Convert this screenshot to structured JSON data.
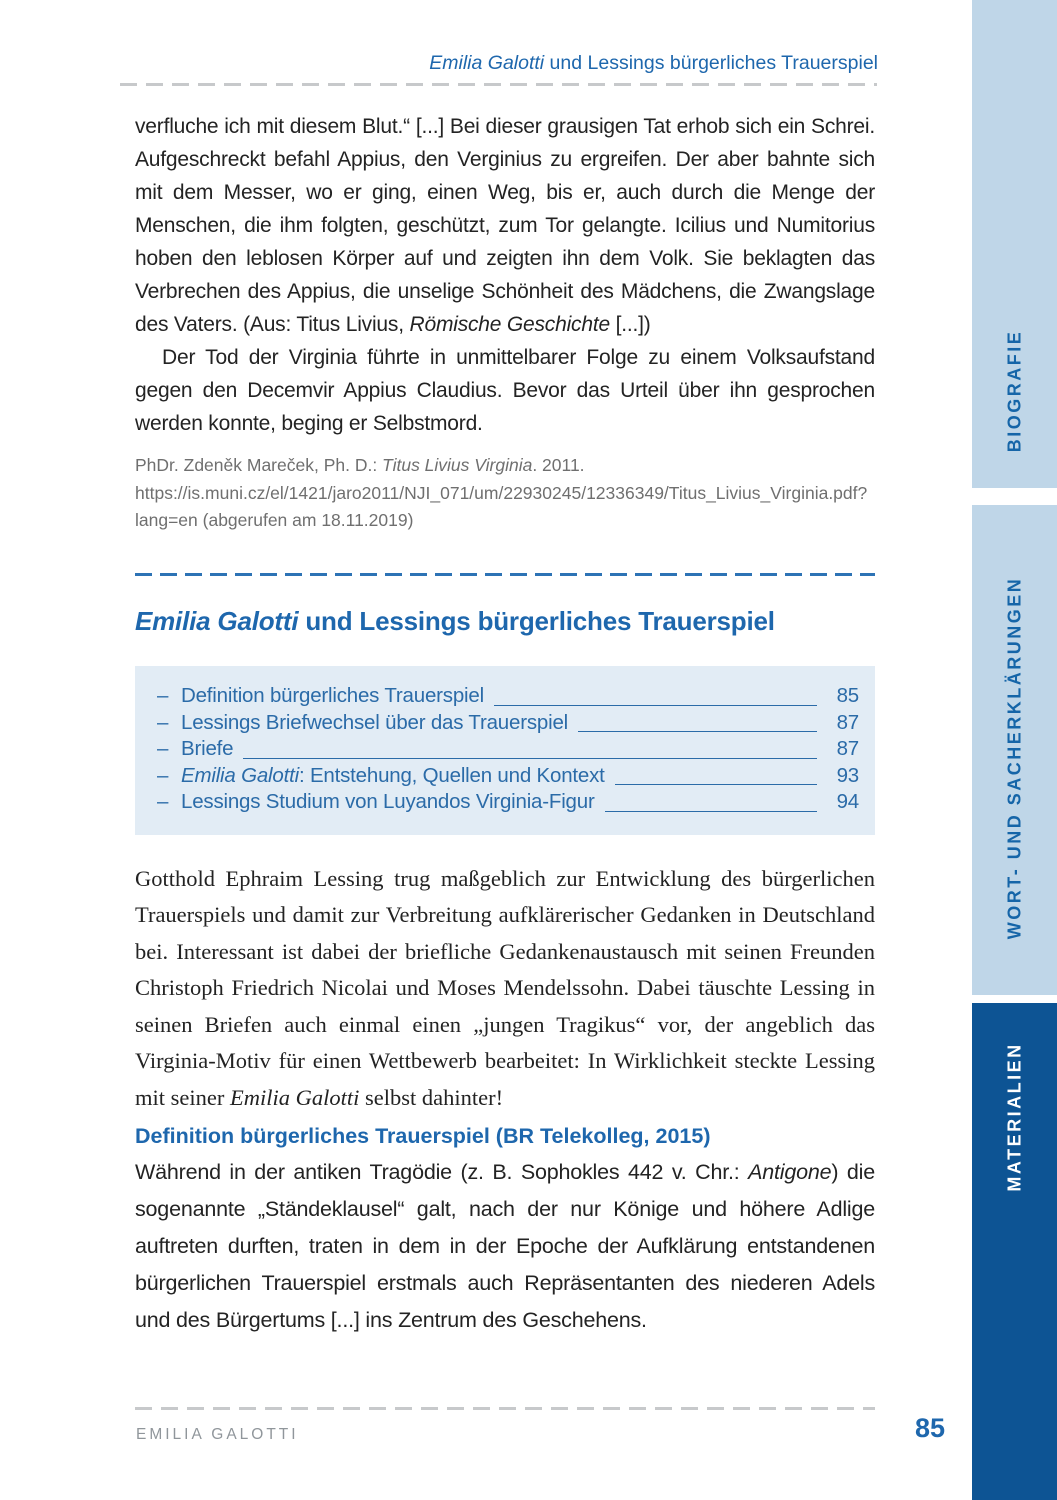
{
  "header": {
    "title_segments": [
      {
        "t": "Emilia Galotti",
        "i": true
      },
      {
        "t": " und Lessings bürgerliches Trauerspiel",
        "i": false
      }
    ]
  },
  "quote": {
    "para1": [
      {
        "t": "verfluche ich mit diesem Blut.“ [...] Bei dieser grausigen Tat erhob sich ein Schrei. Aufgeschreckt befahl Appius, den Verginius zu ergreifen. Der aber bahnte sich mit dem Messer, wo er ging, einen Weg, bis er, auch durch die Menge der Menschen, die ihm folgten, geschützt, zum Tor gelangte. Icilius und Numitorius hoben den leblosen Körper auf und zeigten ihn dem Volk. Sie beklagten das Verbrechen des Appius, die unselige Schönheit des Mädchens, die Zwangslage des Vaters. (Aus: Titus Livius, ",
        "i": false
      },
      {
        "t": "Römische Geschichte",
        "i": true
      },
      {
        "t": " [...])",
        "i": false
      }
    ],
    "para2": "Der Tod der Virginia führte in unmittelbarer Folge zu einem Volksaufstand gegen den Decemvir Appius Claudius. Bevor das Urteil über ihn gesprochen werden konnte, beging er Selbstmord.",
    "citation": [
      {
        "t": "PhDr. Zdeněk Mareček, Ph. D.: ",
        "i": false
      },
      {
        "t": "Titus Livius Virginia",
        "i": true
      },
      {
        "t": ". 2011. https://is.muni.cz/el/1421/jaro2011/NJI_071/um/22930245/12336349/Titus_Livius_Virginia.pdf?lang=en (abgerufen am 18.11.2019)",
        "i": false
      }
    ]
  },
  "section": {
    "heading": [
      {
        "t": "Emilia Galotti",
        "i": true
      },
      {
        "t": " und Lessings bürgerliches Trauerspiel",
        "i": false
      }
    ],
    "toc": {
      "marker": "–",
      "items": [
        {
          "label": [
            {
              "t": "Definition bürgerliches Trauerspiel",
              "i": false
            }
          ],
          "page": "85"
        },
        {
          "label": [
            {
              "t": "Lessings Briefwechsel über das Trauerspiel",
              "i": false
            }
          ],
          "page": "87"
        },
        {
          "label": [
            {
              "t": "Briefe",
              "i": false
            }
          ],
          "page": "87"
        },
        {
          "label": [
            {
              "t": "Emilia Galotti",
              "i": true
            },
            {
              "t": ": Entstehung, Quellen und Kontext",
              "i": false
            }
          ],
          "page": "93"
        },
        {
          "label": [
            {
              "t": "Lessings Studium von Luyandos Virginia-Figur",
              "i": false
            }
          ],
          "page": "94"
        }
      ]
    }
  },
  "body": {
    "para": [
      {
        "t": "Gotthold Ephraim Lessing trug maßgeblich zur Entwicklung des bürgerlichen Trauerspiels und damit zur Verbreitung aufklärerischer Gedanken in Deutschland bei. Interessant ist dabei der briefliche Gedankenaustausch mit seinen Freunden Christoph Friedrich Nicolai und Moses Mendelssohn. Dabei täuschte Lessing in seinen Briefen auch einmal einen „jungen Tragikus“ vor, der angeblich das Virginia-Motiv für einen Wettbewerb bearbeitet: In Wirklichkeit steckte Lessing mit seiner ",
        "i": false
      },
      {
        "t": "Emilia Galotti",
        "i": true
      },
      {
        "t": " selbst dahinter!",
        "i": false
      }
    ],
    "subheading": "Definition bürgerliches Trauerspiel (BR Telekolleg, 2015)",
    "definition": [
      {
        "t": "Während in der antiken Tragödie (z. B. Sophokles 442 v. Chr.: ",
        "i": false
      },
      {
        "t": "Antigone",
        "i": true
      },
      {
        "t": ") die sogenannte „Ständeklausel“ galt, nach der nur Könige und höhere Adlige auftreten durften, traten in dem in der Epoche der Aufklärung entstandenen bürgerlichen Trauerspiel erstmals auch Repräsentanten des niederen Adels und des Bürgertums [...] ins Zentrum des Geschehens.",
        "i": false
      }
    ]
  },
  "footer": {
    "book_title": "EMILIA GALOTTI",
    "page_number": "85"
  },
  "sidebar": {
    "tabs": [
      {
        "label": "BIOGRAFIE",
        "style": "light"
      },
      {
        "label": "WORT- UND SACHERKLÄRUNGEN",
        "style": "light"
      },
      {
        "label": "MATERIALIEN",
        "style": "dark"
      }
    ]
  },
  "colors": {
    "accent_blue": "#1e67ad",
    "toc_text": "#2b6ba8",
    "toc_bg": "#e2ecf5",
    "tab_bg": "#bfd6e8",
    "tab_text": "#1565a8",
    "tab_dark_bg": "#0d5494",
    "tab_dark_text": "#ffffff",
    "body_text": "#232323",
    "citation_gray": "#6f6f6f",
    "footer_gray": "#90969b",
    "dash_gray": "#c7c9cb",
    "dash_blue": "#2d73b5"
  }
}
